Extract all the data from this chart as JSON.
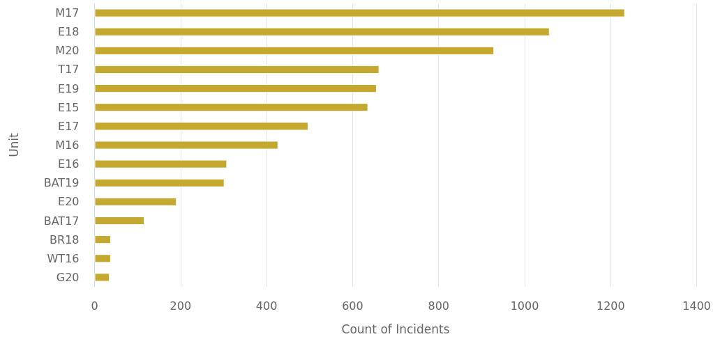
{
  "chart_data": {
    "type": "bar",
    "orientation": "horizontal",
    "xlabel": "Count of Incidents",
    "ylabel": "Unit",
    "categories": [
      "M17",
      "E18",
      "M20",
      "T17",
      "E19",
      "E15",
      "E17",
      "M16",
      "E16",
      "BAT19",
      "E20",
      "BAT17",
      "BR18",
      "WT16",
      "G20"
    ],
    "values": [
      1233,
      1058,
      929,
      662,
      656,
      636,
      497,
      427,
      308,
      302,
      191,
      116,
      38,
      38,
      35
    ],
    "color": "#c4a82f",
    "xlim": [
      0,
      1400
    ],
    "xticks": [
      0,
      200,
      400,
      600,
      800,
      1000,
      1200,
      1400
    ],
    "grid": "x"
  }
}
